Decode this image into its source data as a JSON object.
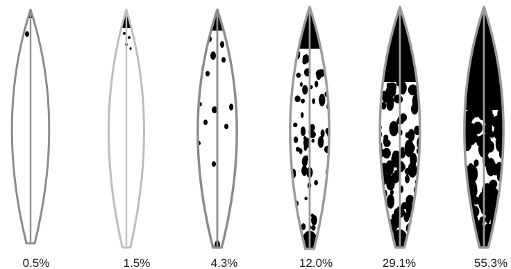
{
  "figure": {
    "leaves": [
      {
        "id": "leaf-1",
        "severity_label": "0.5%",
        "severity_percent": 0.5,
        "outline_color": "#8c8c8c"
      },
      {
        "id": "leaf-2",
        "severity_label": "1.5%",
        "severity_percent": 1.5,
        "outline_color": "#bdbdbd"
      },
      {
        "id": "leaf-3",
        "severity_label": "4.3%",
        "severity_percent": 4.3,
        "outline_color": "#8c8c8c"
      },
      {
        "id": "leaf-4",
        "severity_label": "12.0%",
        "severity_percent": 12.0,
        "outline_color": "#9a9a9a"
      },
      {
        "id": "leaf-5",
        "severity_label": "29.1%",
        "severity_percent": 29.1,
        "outline_color": "#9a9a9a"
      },
      {
        "id": "leaf-6",
        "severity_label": "55.3%",
        "severity_percent": 55.3,
        "outline_color": "#9a9a9a"
      }
    ],
    "lesion_color": "#000000",
    "leaf_fill": "#ffffff"
  }
}
